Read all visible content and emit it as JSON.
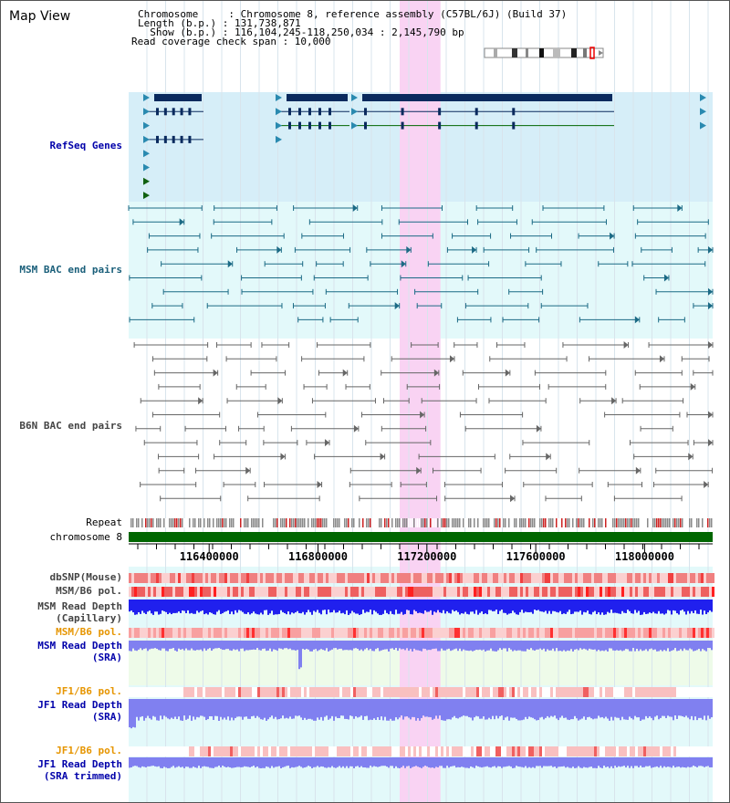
{
  "title": "Map View",
  "info": {
    "chromosome_label": "Chromosome     : Chromosome 8, reference assembly (C57BL/6J) (Build 37)",
    "length_label": "Length (b.p.) : 131,738,871",
    "show_label": "  Show (b.p.) : 116,104,245-118,250,034 : 2,145,790 bp",
    "span_label": "Read coverage check span : 10,000"
  },
  "tracks": {
    "refseq": "RefSeq Genes",
    "msm_bac": "MSM BAC end pairs",
    "b6n_bac": "B6N BAC end pairs",
    "repeat": "Repeat",
    "chromosome": "chromosome 8",
    "dbsnp": "dbSNP(Mouse)",
    "msm_b6_pol_1": "MSM/B6 pol.",
    "msm_read_depth_cap_1": "MSM Read Depth",
    "msm_read_depth_cap_2": "(Capillary)",
    "msm_b6_pol_2": "MSM/B6 pol.",
    "msm_read_depth_sra_1": "MSM Read Depth",
    "msm_read_depth_sra_2": "(SRA)",
    "jf1_b6_pol_1": "JF1/B6 pol.",
    "jf1_read_depth_sra_1": "JF1 Read Depth",
    "jf1_read_depth_sra_2": "(SRA)",
    "jf1_b6_pol_2": "JF1/B6 pol.",
    "jf1_read_depth_trim_1": "JF1 Read Depth",
    "jf1_read_depth_trim_2": "(SRA trimmed)"
  },
  "axis": {
    "ticks": [
      "116400000",
      "116800000",
      "117200000",
      "117600000",
      "118000000"
    ],
    "tick_values": [
      116400000,
      116800000,
      117200000,
      117600000,
      118000000
    ],
    "range": [
      116104245,
      118250034
    ]
  },
  "highlight_range": [
    117100000,
    117250000
  ],
  "colors": {
    "refseq_bg": "#d6eef8",
    "bac_bg": "#e3f9fa",
    "highlight": "#f9d3f3",
    "gene": "#0a2a5e",
    "msm_pair": "#1b6a85",
    "b6n_pair": "#666666",
    "chromosome_bar": "#006600",
    "snp": "#f08080",
    "depth_blue": "#2020ee",
    "depth_light": "#8080f0"
  }
}
